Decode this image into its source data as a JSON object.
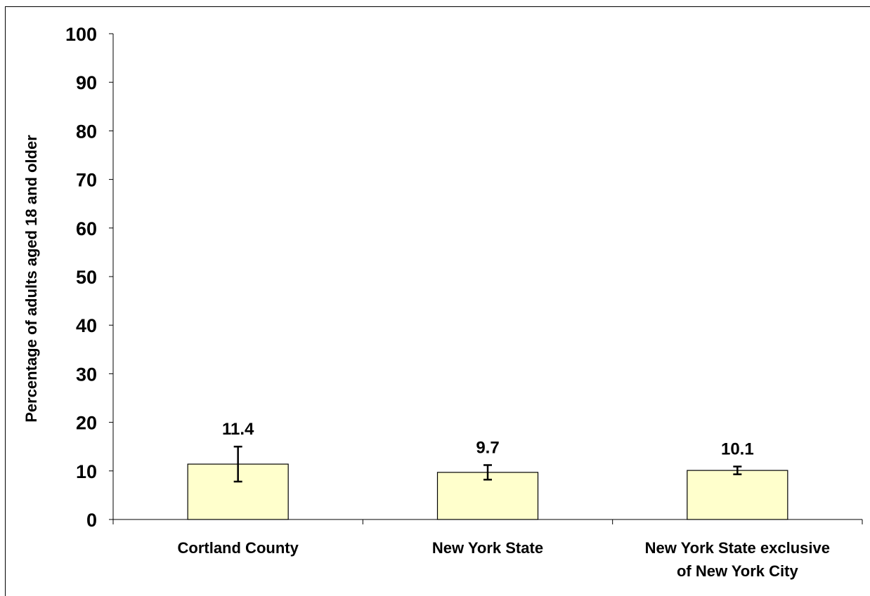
{
  "chart_data": {
    "type": "bar",
    "title": "",
    "ylabel": "Percentage of adults aged 18 and older",
    "xlabel": "",
    "ylim": [
      0,
      100
    ],
    "yticks": [
      0,
      10,
      20,
      30,
      40,
      50,
      60,
      70,
      80,
      90,
      100
    ],
    "ytick_labels": [
      "0",
      "10",
      "20",
      "30",
      "40",
      "50",
      "60",
      "70",
      "80",
      "90",
      "100"
    ],
    "categories": [
      [
        "Cortland County"
      ],
      [
        "New York State"
      ],
      [
        "New York State exclusive",
        "of New York City"
      ]
    ],
    "values": [
      11.4,
      9.7,
      10.1
    ],
    "value_labels": [
      "11.4",
      "9.7",
      "10.1"
    ],
    "error_low": [
      7.8,
      8.2,
      9.3
    ],
    "error_high": [
      15.0,
      11.2,
      10.9
    ],
    "bar_color": "#FFFFCC",
    "bar_edge_color": "#000000",
    "grid": false
  }
}
